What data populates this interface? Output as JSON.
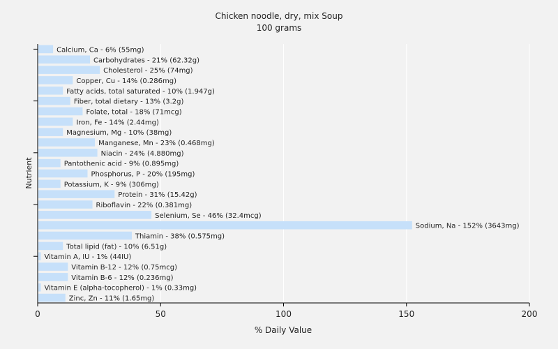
{
  "chart_data": {
    "type": "bar",
    "orientation": "horizontal",
    "title": "Chicken noodle, dry, mix Soup",
    "subtitle": "100 grams",
    "xlabel": "% Daily Value",
    "ylabel": "Nutrient",
    "xlim": [
      0,
      200
    ],
    "xticks": [
      0,
      50,
      100,
      150,
      200
    ],
    "grid": true,
    "bar_color": "#c6e0fa",
    "categories": [
      "Calcium, Ca",
      "Carbohydrates",
      "Cholesterol",
      "Copper, Cu",
      "Fatty acids, total saturated",
      "Fiber, total dietary",
      "Folate, total",
      "Iron, Fe",
      "Magnesium, Mg",
      "Manganese, Mn",
      "Niacin",
      "Pantothenic acid",
      "Phosphorus, P",
      "Potassium, K",
      "Protein",
      "Riboflavin",
      "Selenium, Se",
      "Sodium, Na",
      "Thiamin",
      "Total lipid (fat)",
      "Vitamin A, IU",
      "Vitamin B-12",
      "Vitamin B-6",
      "Vitamin E (alpha-tocopherol)",
      "Zinc, Zn"
    ],
    "values": [
      6,
      21,
      25,
      14,
      10,
      13,
      18,
      14,
      10,
      23,
      24,
      9,
      20,
      9,
      31,
      22,
      46,
      152,
      38,
      10,
      1,
      12,
      12,
      1,
      11
    ],
    "labels": [
      "Calcium, Ca - 6% (55mg)",
      "Carbohydrates - 21% (62.32g)",
      "Cholesterol - 25% (74mg)",
      "Copper, Cu - 14% (0.286mg)",
      "Fatty acids, total saturated - 10% (1.947g)",
      "Fiber, total dietary - 13% (3.2g)",
      "Folate, total - 18% (71mcg)",
      "Iron, Fe - 14% (2.44mg)",
      "Magnesium, Mg - 10% (38mg)",
      "Manganese, Mn - 23% (0.468mg)",
      "Niacin - 24% (4.880mg)",
      "Pantothenic acid - 9% (0.895mg)",
      "Phosphorus, P - 20% (195mg)",
      "Potassium, K - 9% (306mg)",
      "Protein - 31% (15.42g)",
      "Riboflavin - 22% (0.381mg)",
      "Selenium, Se - 46% (32.4mcg)",
      "Sodium, Na - 152% (3643mg)",
      "Thiamin - 38% (0.575mg)",
      "Total lipid (fat) - 10% (6.51g)",
      "Vitamin A, IU - 1% (44IU)",
      "Vitamin B-12 - 12% (0.75mcg)",
      "Vitamin B-6 - 12% (0.236mg)",
      "Vitamin E (alpha-tocopherol) - 1% (0.33mg)",
      "Zinc, Zn - 11% (1.65mg)"
    ]
  }
}
